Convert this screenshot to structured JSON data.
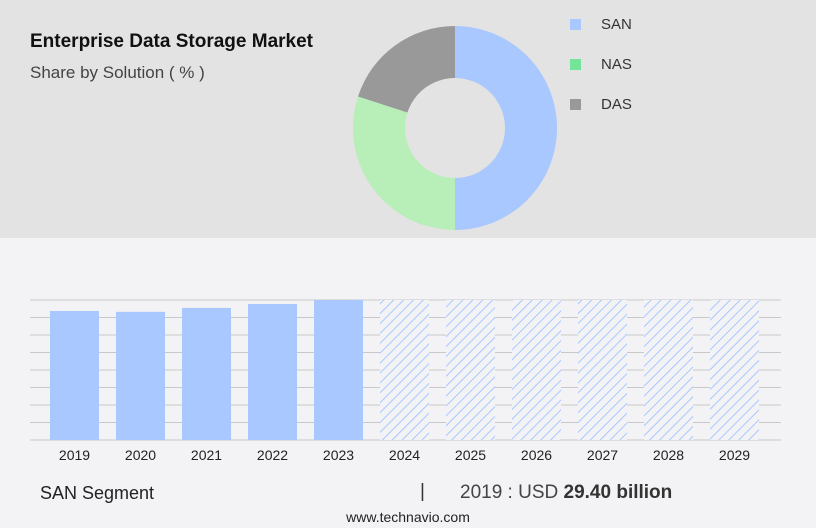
{
  "header": {
    "title": "Enterprise Data Storage Market",
    "subtitle": "Share by Solution ( % )"
  },
  "chart_data": [
    {
      "type": "pie",
      "variant": "donut",
      "slices": [
        {
          "label": "SAN",
          "value": 50,
          "color": "#a8c8ff"
        },
        {
          "label": "NAS",
          "value": 30,
          "color": "#b8eeb8"
        },
        {
          "label": "DAS",
          "value": 20,
          "color": "#999999"
        }
      ],
      "legend": {
        "placement": "right",
        "items": [
          {
            "label": "SAN",
            "color": "#a8c8ff"
          },
          {
            "label": "NAS",
            "color": "#74e49a"
          },
          {
            "label": "DAS",
            "color": "#999999"
          }
        ]
      }
    },
    {
      "type": "bar",
      "categories": [
        "2019",
        "2020",
        "2021",
        "2022",
        "2023",
        "2024",
        "2025",
        "2026",
        "2027",
        "2028",
        "2029"
      ],
      "values": [
        29.4,
        29.2,
        30.1,
        31.0,
        31.9,
        null,
        null,
        null,
        null,
        null,
        null
      ],
      "forecast_categories": [
        "2024",
        "2025",
        "2026",
        "2027",
        "2028",
        "2029"
      ],
      "color": "#a8c8ff",
      "ylim": [
        0,
        31.9
      ],
      "grid": true
    }
  ],
  "footer": {
    "segment": "SAN Segment",
    "separator": "|",
    "year_label": "2019 : USD",
    "value": "29.40 billion",
    "url": "www.technavio.com"
  }
}
